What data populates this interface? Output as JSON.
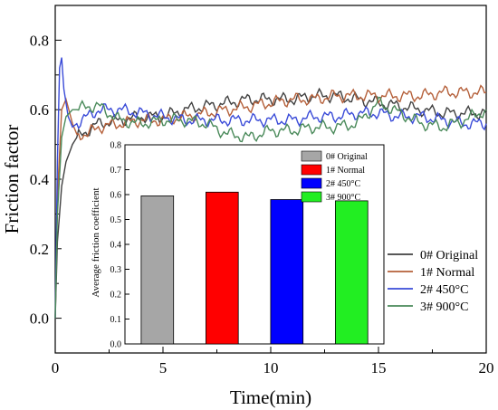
{
  "chart_data": [
    {
      "type": "line",
      "xlabel": "Time(min)",
      "ylabel": "Friction factor",
      "xlim": [
        0,
        20
      ],
      "ylim": [
        -0.1,
        0.9
      ],
      "xticks": [
        0,
        5,
        10,
        15,
        20
      ],
      "yticks": [
        0.0,
        0.2,
        0.4,
        0.6,
        0.8
      ],
      "grid": false,
      "legend_position": "bottom-right",
      "series": [
        {
          "name": "0# Original",
          "color": "#404040",
          "x": [
            0,
            0.1,
            0.3,
            0.5,
            0.8,
            1,
            1.5,
            2,
            3,
            4,
            5,
            6,
            7,
            8,
            9,
            10,
            11,
            12,
            13,
            14,
            15,
            16,
            17,
            18,
            19,
            20
          ],
          "y": [
            0.0,
            0.22,
            0.38,
            0.45,
            0.5,
            0.52,
            0.54,
            0.56,
            0.57,
            0.58,
            0.58,
            0.6,
            0.61,
            0.62,
            0.63,
            0.63,
            0.63,
            0.64,
            0.64,
            0.63,
            0.62,
            0.61,
            0.6,
            0.59,
            0.59,
            0.59
          ]
        },
        {
          "name": "1# Normal",
          "color": "#b5603a",
          "x": [
            0,
            0.1,
            0.3,
            0.5,
            0.8,
            1,
            1.5,
            2,
            3,
            4,
            5,
            6,
            7,
            8,
            9,
            10,
            11,
            12,
            13,
            14,
            15,
            16,
            17,
            18,
            19,
            20
          ],
          "y": [
            0.0,
            0.35,
            0.6,
            0.63,
            0.56,
            0.53,
            0.53,
            0.55,
            0.56,
            0.57,
            0.57,
            0.58,
            0.59,
            0.6,
            0.61,
            0.62,
            0.63,
            0.63,
            0.64,
            0.64,
            0.64,
            0.64,
            0.64,
            0.65,
            0.65,
            0.65
          ]
        },
        {
          "name": "2# 450°C",
          "color": "#3a4bd8",
          "x": [
            0,
            0.1,
            0.2,
            0.3,
            0.4,
            0.6,
            0.8,
            1,
            1.5,
            2,
            3,
            4,
            5,
            6,
            7,
            8,
            9,
            10,
            11,
            12,
            13,
            14,
            15,
            16,
            17,
            18,
            19,
            20
          ],
          "y": [
            0.0,
            0.45,
            0.72,
            0.75,
            0.66,
            0.58,
            0.55,
            0.56,
            0.58,
            0.6,
            0.6,
            0.59,
            0.58,
            0.57,
            0.57,
            0.57,
            0.57,
            0.57,
            0.57,
            0.58,
            0.58,
            0.59,
            0.59,
            0.58,
            0.58,
            0.57,
            0.56,
            0.56
          ]
        },
        {
          "name": "3# 900°C",
          "color": "#4a8a5a",
          "x": [
            0,
            0.1,
            0.3,
            0.5,
            0.8,
            1,
            1.5,
            2,
            3,
            4,
            5,
            6,
            7,
            8,
            9,
            10,
            11,
            12,
            13,
            14,
            15,
            16,
            17,
            18,
            19,
            20
          ],
          "y": [
            0.0,
            0.3,
            0.52,
            0.58,
            0.6,
            0.6,
            0.61,
            0.61,
            0.57,
            0.56,
            0.57,
            0.57,
            0.56,
            0.53,
            0.52,
            0.54,
            0.54,
            0.55,
            0.55,
            0.56,
            0.62,
            0.59,
            0.56,
            0.55,
            0.57,
            0.6
          ]
        }
      ]
    },
    {
      "type": "bar",
      "ylabel": "Average friction coefficient",
      "xlabel": "",
      "ylim": [
        0.0,
        0.8
      ],
      "yticks": [
        0.0,
        0.1,
        0.2,
        0.3,
        0.4,
        0.5,
        0.6,
        0.7,
        0.8
      ],
      "grid": false,
      "legend_position": "top-right",
      "categories": [
        "0# Original",
        "1# Normal",
        "2# 450°C",
        "3# 900°C"
      ],
      "values": [
        0.595,
        0.61,
        0.58,
        0.575
      ],
      "colors": [
        "#a6a6a6",
        "#ff0000",
        "#0000ff",
        "#22ee22"
      ]
    }
  ]
}
